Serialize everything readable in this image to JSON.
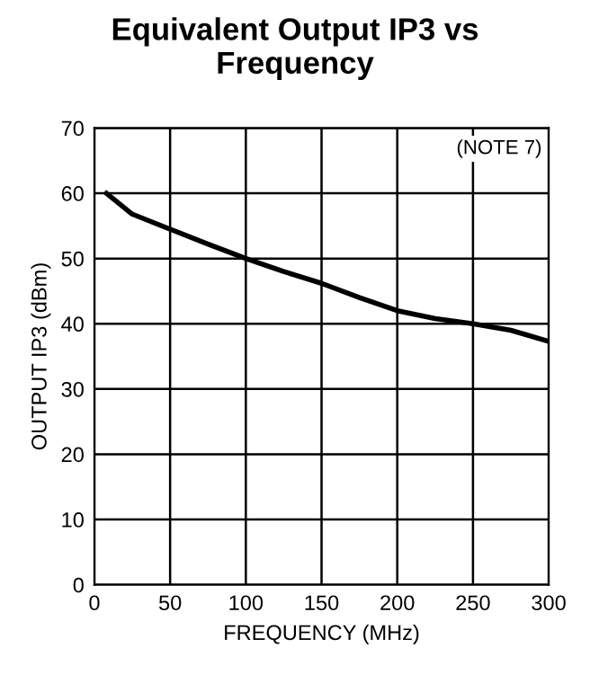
{
  "chart_data": {
    "type": "line",
    "title": "Equivalent Output IP3 vs\nFrequency",
    "xlabel": "FREQUENCY (MHz)",
    "ylabel": "OUTPUT IP3 (dBm)",
    "annotations": [
      "(NOTE 7)"
    ],
    "x": [
      8,
      25,
      50,
      75,
      100,
      125,
      150,
      175,
      200,
      225,
      250,
      275,
      300
    ],
    "series": [
      {
        "color": "#000000",
        "values": [
          60,
          56.8,
          54.5,
          52.2,
          50,
          48,
          46.2,
          44,
          42,
          40.8,
          40,
          39,
          37.3
        ]
      }
    ],
    "xlim": [
      0,
      300
    ],
    "xticks": [
      0,
      50,
      100,
      150,
      200,
      250,
      300
    ],
    "ylim": [
      0,
      70
    ],
    "yticks": [
      0,
      10,
      20,
      30,
      40,
      50,
      60,
      70
    ],
    "grid": true,
    "marker": "none",
    "line_style": "solid"
  }
}
